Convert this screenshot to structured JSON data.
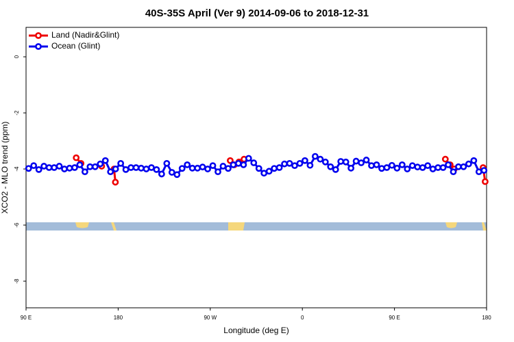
{
  "chart_data": {
    "type": "line",
    "title": "40S-35S April (Ver 9)   2014-09-06 to 2018-12-31",
    "xlabel": "Longitude (deg E)",
    "ylabel": "XCO2 - MLO trend (ppm)",
    "xlim": [
      90,
      540
    ],
    "xticks": [
      {
        "value": 90,
        "label": "90 E"
      },
      180,
      {
        "value": 270,
        "label": "90 W"
      },
      {
        "value": 360,
        "label": "0"
      },
      {
        "value": 450,
        "label": "90 E"
      },
      {
        "value": 540,
        "label": "180"
      }
    ],
    "ylim": [
      -8.95,
      1.05
    ],
    "yticks": [
      0,
      -2,
      -4,
      -6,
      -8
    ],
    "legend": "top-left",
    "series": [
      {
        "name": "Land (Nadir&Glint)",
        "color": "#ee0000",
        "x": [
          139,
          143.7,
          null,
          163.9,
          null,
          176,
          177.3,
          null,
          289.5,
          293.5,
          298,
          303,
          null,
          499.7,
          504.4,
          508.4,
          null,
          536.6,
          538.6
        ],
        "values": [
          -3.6,
          -3.8,
          null,
          -3.9,
          null,
          -4.0,
          -4.47,
          null,
          -3.7,
          -3.85,
          -3.75,
          -3.65,
          null,
          -3.65,
          -3.85,
          -4.0,
          null,
          -3.95,
          -4.45
        ]
      },
      {
        "name": "Ocean (Glint)",
        "color": "#0000ee",
        "x": [
          92.5,
          97.5,
          102.5,
          107.5,
          112.5,
          117.5,
          122.5,
          127.5,
          132.5,
          137.5,
          142.5,
          147.5,
          152.5,
          157.5,
          162.5,
          167.5,
          172.5,
          177.5,
          182.5,
          187.5,
          192.5,
          197.5,
          202.5,
          207.5,
          212.5,
          217.5,
          222.5,
          227.5,
          232.5,
          237.5,
          242.5,
          247.5,
          252.5,
          257.5,
          262.5,
          267.5,
          272.5,
          277.5,
          282.5,
          287.5,
          292.5,
          297.5,
          302.5,
          307.5,
          312.5,
          317.5,
          322.5,
          327.5,
          332.5,
          337.5,
          342.5,
          347.5,
          352.5,
          357.5,
          362.5,
          367.5,
          372.5,
          377.5,
          382.5,
          387.5,
          392.5,
          397.5,
          402.5,
          407.5,
          412.5,
          417.5,
          422.5,
          427.5,
          432.5,
          437.5,
          442.5,
          447.5,
          452.5,
          457.5,
          462.5,
          467.5,
          472.5,
          477.5,
          482.5,
          487.5,
          492.5,
          497.5,
          502.5,
          507.5,
          512.5,
          517.5,
          522.5,
          527.5,
          532.5,
          537.5
        ],
        "values": [
          -3.98,
          -3.88,
          -4.02,
          -3.9,
          -3.95,
          -3.95,
          -3.9,
          -4.0,
          -3.97,
          -3.95,
          -3.85,
          -4.1,
          -3.92,
          -3.92,
          -3.82,
          -3.7,
          -4.1,
          -4.0,
          -3.8,
          -4.02,
          -3.95,
          -3.95,
          -3.97,
          -4.0,
          -3.95,
          -4.02,
          -4.18,
          -3.8,
          -4.12,
          -4.2,
          -3.98,
          -3.85,
          -3.97,
          -3.97,
          -3.93,
          -4.0,
          -3.88,
          -4.1,
          -3.9,
          -3.98,
          -3.85,
          -3.8,
          -3.85,
          -3.62,
          -3.78,
          -3.98,
          -4.15,
          -4.08,
          -3.98,
          -3.95,
          -3.82,
          -3.8,
          -3.88,
          -3.8,
          -3.7,
          -3.87,
          -3.55,
          -3.65,
          -3.75,
          -3.92,
          -4.02,
          -3.73,
          -3.75,
          -3.97,
          -3.72,
          -3.78,
          -3.68,
          -3.88,
          -3.85,
          -3.98,
          -3.95,
          -3.87,
          -3.97,
          -3.85,
          -4.0,
          -3.88,
          -3.93,
          -3.95,
          -3.88,
          -4.0,
          -3.95,
          -3.95,
          -3.85,
          -4.1,
          -3.92,
          -3.92,
          -3.82,
          -3.7,
          -4.1,
          -4.05
        ]
      }
    ]
  }
}
